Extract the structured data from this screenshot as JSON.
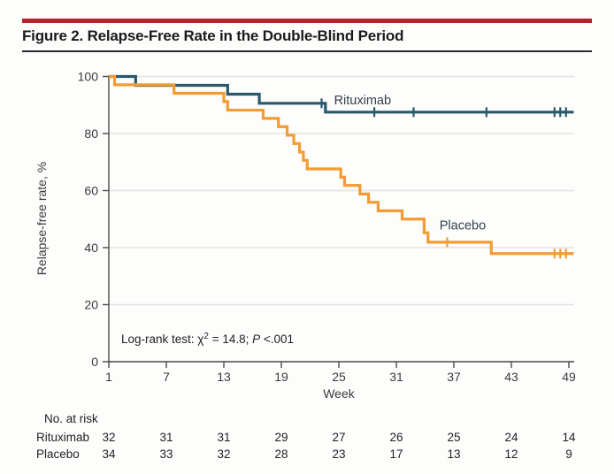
{
  "figure": {
    "title": "Figure 2. Relapse-Free Rate in the Double-Blind Period"
  },
  "colors": {
    "rituximab": "#28586a",
    "placebo": "#f29c33",
    "title_bar": "#b6212a",
    "grid": "#e3e3e2",
    "axis": "#4a4a4a"
  },
  "chart_data": {
    "type": "line",
    "subtype": "kaplan-meier-step",
    "title": "",
    "xlabel": "Week",
    "ylabel": "Relapse-free rate, %",
    "xlim": [
      1,
      49
    ],
    "ylim": [
      0,
      100
    ],
    "x_ticks": [
      1,
      7,
      13,
      19,
      25,
      31,
      37,
      43,
      49
    ],
    "y_ticks": [
      0,
      20,
      40,
      60,
      80,
      100
    ],
    "grid": true,
    "legend_position": "inline-labels",
    "end_week": 49.5,
    "annotation": {
      "prefix": "Log-rank test: χ",
      "exponent": "2",
      "mid": " = 14.8; ",
      "stat_label": "P",
      "stat_value": " <.001"
    },
    "series": [
      {
        "name": "Rituximab",
        "color_key": "rituximab",
        "steps": [
          [
            1,
            100
          ],
          [
            3.8,
            96.9
          ],
          [
            13.4,
            93.8
          ],
          [
            16.7,
            90.6
          ],
          [
            23.6,
            87.5
          ]
        ],
        "censors": [
          [
            23.2,
            90.6
          ],
          [
            28.7,
            87.5
          ],
          [
            32.8,
            87.5
          ],
          [
            40.4,
            87.5
          ],
          [
            47.5,
            87.5
          ],
          [
            48.1,
            87.5
          ],
          [
            48.7,
            87.5
          ]
        ],
        "label_week": 24.5,
        "label_pct": 90.3
      },
      {
        "name": "Placebo",
        "color_key": "placebo",
        "steps": [
          [
            1,
            100
          ],
          [
            1.6,
            97.1
          ],
          [
            7.8,
            94.1
          ],
          [
            13,
            91.2
          ],
          [
            13.4,
            88.2
          ],
          [
            17.1,
            85.3
          ],
          [
            18.7,
            82.4
          ],
          [
            19.6,
            79.4
          ],
          [
            20.3,
            76.5
          ],
          [
            20.9,
            73.5
          ],
          [
            21.3,
            70.6
          ],
          [
            21.7,
            67.6
          ],
          [
            25.2,
            64.7
          ],
          [
            25.6,
            61.8
          ],
          [
            27.2,
            58.8
          ],
          [
            28.1,
            55.9
          ],
          [
            29.1,
            52.9
          ],
          [
            31.6,
            50.0
          ],
          [
            33.9,
            45.2
          ],
          [
            34.3,
            41.9
          ],
          [
            40.9,
            37.9
          ]
        ],
        "censors": [
          [
            36.3,
            41.9
          ],
          [
            47.5,
            37.9
          ],
          [
            48.1,
            37.9
          ],
          [
            48.7,
            37.9
          ]
        ],
        "label_week": 35.5,
        "label_pct": 46.3
      }
    ]
  },
  "risk_table": {
    "title": "No. at risk",
    "weeks": [
      1,
      7,
      13,
      19,
      25,
      31,
      37,
      43,
      49
    ],
    "rows": [
      {
        "label": "Rituximab",
        "values": [
          32,
          31,
          31,
          29,
          27,
          26,
          25,
          24,
          14
        ]
      },
      {
        "label": "Placebo",
        "values": [
          34,
          33,
          32,
          28,
          23,
          17,
          13,
          12,
          9
        ]
      }
    ]
  }
}
